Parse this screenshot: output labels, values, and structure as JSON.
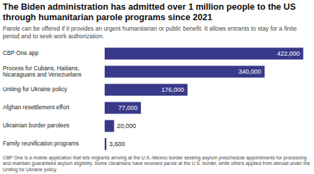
{
  "chart_data": {
    "type": "bar",
    "orientation": "horizontal",
    "title": "The Biden administration has admitted over 1 million people to the US through humanitarian parole programs since 2021",
    "subtitle": "Parole can be offered if it provides an urgent humanitarian or public benefit. It allows entrants to stay for a finite period and to seek work authorization.",
    "categories": [
      "CBP One app",
      "Process for Cubans, Haitians, Nicaraguans and Venezuelans",
      "Uniting for Ukraine policy",
      "Afghan resettlement effort",
      "Ukrainian border parolees",
      "Family reunification programs"
    ],
    "values": [
      422000,
      340000,
      176000,
      77000,
      20000,
      3600
    ],
    "value_labels": [
      "422,000",
      "340,000",
      "176,000",
      "77,000",
      "20,000",
      "3,600"
    ],
    "color": "#38398a",
    "xlim": [
      0,
      430000
    ],
    "data_labels": true,
    "tick_labels": "y",
    "grid": false,
    "footnote": "CBP One is a mobile application that lets migrants arriving at the U.S.-Mexico border seeking asylum preschedule appointments for processing and maintain guaranteed asylum eligibility. Some Ukrainians have received parole at the U.S. border, while others applied from abroad under the Uniting for Ukraine policy."
  }
}
